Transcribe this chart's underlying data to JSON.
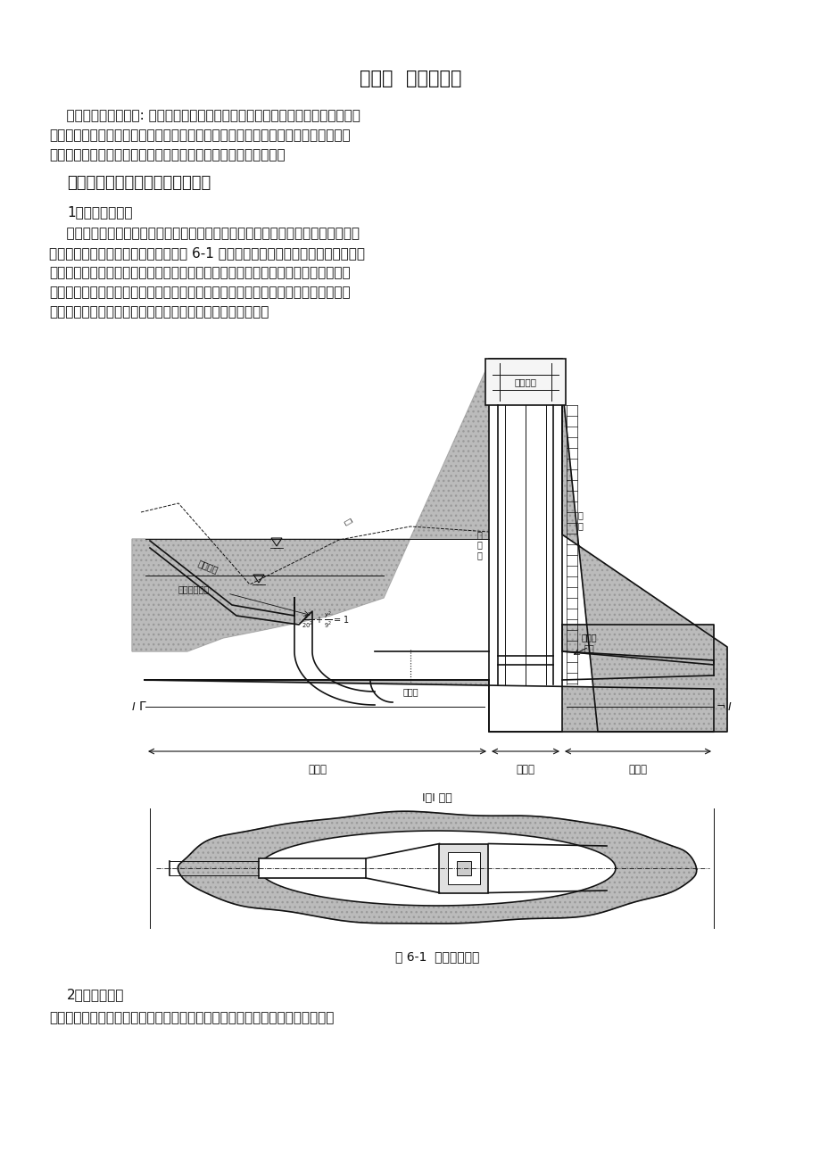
{
  "title": "第三节  有压进水口",
  "para1_lines": [
    "    有压进水口的特征是: 进水口高程设在水库最低死水位以下，以引进深层水为主，",
    "整个进水口处于有压状态，其后接有压隙洞或压力管道。适用于坥式、有压引水式、",
    "混合式水电站。有压进水口通常由进口段、闸门段及渐变段组成。"
  ],
  "section1": "一、有压进水口的类型及适用条件",
  "sub1": "1．隙洞式进水口",
  "para2_lines": [
    "    在隙洞进口附近的岩体中开挖站井，井壁一般要进行行衬砂，闸门安装在站井中，",
    "站井的顶部布置启闭机和操纵室，如图 6-1 所示。渐变段之后接隙洞洞身。这种布置",
    "的优点是结构比较简单，不受风浪和冰冖的影响，地震影响也较小，比较安全可靠。",
    "缺点是站井之前的隙洞段不便检修，站井开挖也较困难。适用于工程地质条件较好，",
    "岩体比较完整，山坡坡度适宜，易于开挖平洞和站井的情况。"
  ],
  "fig_caption": "图 6-1  隙洞式进水口",
  "sub2": "2．墙式进水口",
  "para3": "进口段、闸门段和闸门站井均布置在山体之外，形成一个紧靠在山岩上的单独墙",
  "bg": "#ffffff",
  "black": "#111111",
  "gray_fill": "#cccccc",
  "dot_fill": "#bbbbbb"
}
